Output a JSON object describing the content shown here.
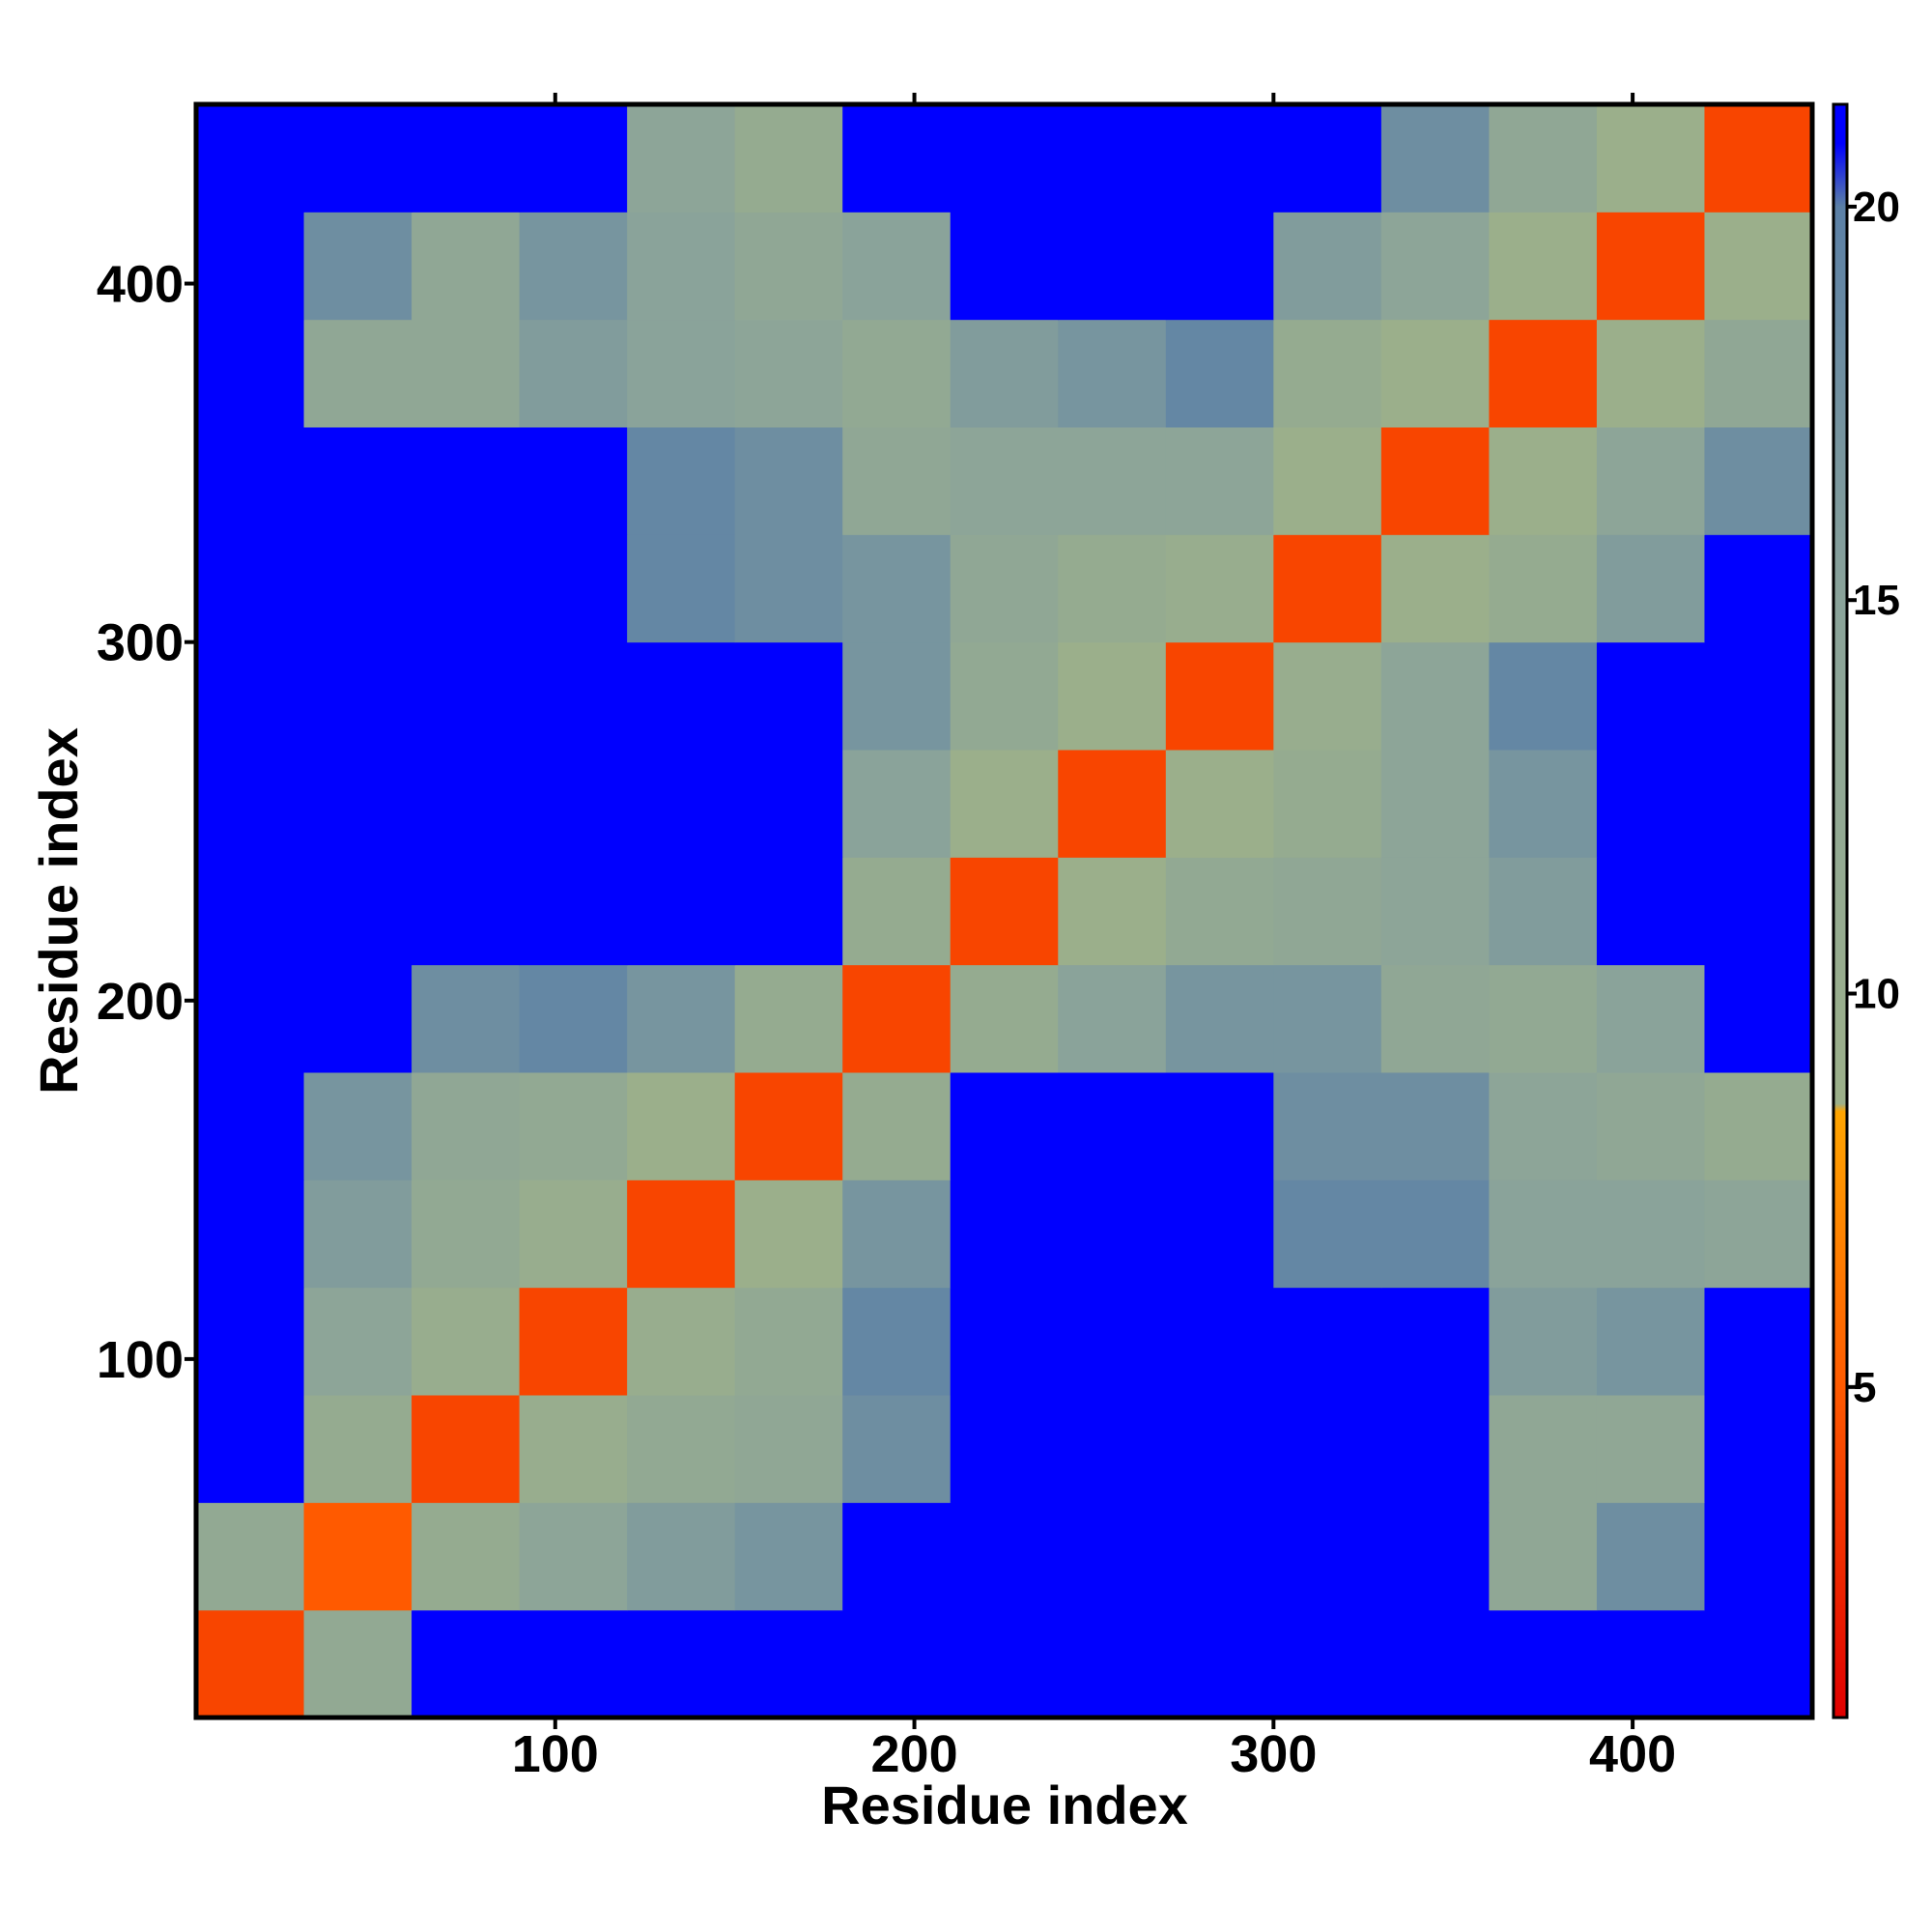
{
  "chart_data": {
    "type": "heatmap",
    "xlabel": "Residue index",
    "ylabel": "Residue index",
    "xlim": [
      0,
      450
    ],
    "ylim": [
      0,
      450
    ],
    "xticks": [
      100,
      200,
      300,
      400
    ],
    "yticks": [
      100,
      200,
      300,
      400
    ],
    "x_bins": [
      0,
      30,
      60,
      90,
      120,
      150,
      180,
      210,
      240,
      270,
      300,
      330,
      360,
      390,
      420,
      450
    ],
    "y_bins": [
      0,
      30,
      60,
      90,
      120,
      150,
      180,
      210,
      240,
      270,
      300,
      330,
      360,
      390,
      420,
      450
    ],
    "values": [
      [
        4,
        12,
        21,
        21,
        21,
        21,
        21,
        21,
        21,
        21,
        21,
        21,
        21,
        21,
        21
      ],
      [
        12,
        5,
        11,
        14,
        16,
        17,
        21,
        21,
        21,
        21,
        21,
        21,
        13,
        18,
        21
      ],
      [
        21,
        11,
        4,
        10,
        12,
        13,
        18,
        21,
        21,
        21,
        21,
        21,
        13,
        13,
        21
      ],
      [
        21,
        14,
        10,
        4,
        10,
        12,
        19,
        21,
        21,
        21,
        21,
        21,
        16,
        17,
        21
      ],
      [
        21,
        16,
        12,
        10,
        4,
        9,
        17,
        21,
        21,
        21,
        19,
        19,
        15,
        15,
        14
      ],
      [
        21,
        17,
        13,
        12,
        9,
        4,
        11,
        21,
        21,
        21,
        18,
        18,
        14,
        13,
        11
      ],
      [
        21,
        21,
        18,
        19,
        17,
        11,
        4,
        11,
        15,
        17,
        17,
        13,
        12,
        15,
        21
      ],
      [
        21,
        21,
        21,
        21,
        21,
        21,
        11,
        4,
        9,
        12,
        13,
        14,
        16,
        21,
        21
      ],
      [
        21,
        21,
        21,
        21,
        21,
        21,
        15,
        9,
        4,
        9,
        11,
        14,
        17,
        21,
        21
      ],
      [
        21,
        21,
        21,
        21,
        21,
        21,
        17,
        12,
        9,
        4,
        10,
        14,
        19,
        21,
        21
      ],
      [
        21,
        21,
        21,
        21,
        19,
        18,
        17,
        13,
        11,
        10,
        4,
        9,
        11,
        16,
        21
      ],
      [
        21,
        21,
        21,
        21,
        19,
        18,
        13,
        14,
        14,
        14,
        9,
        4,
        9,
        14,
        18
      ],
      [
        21,
        13,
        13,
        16,
        15,
        14,
        12,
        16,
        17,
        19,
        11,
        9,
        4,
        9,
        13
      ],
      [
        21,
        18,
        13,
        17,
        15,
        13,
        15,
        21,
        21,
        21,
        16,
        14,
        9,
        4,
        9
      ],
      [
        21,
        21,
        21,
        21,
        14,
        11,
        21,
        21,
        21,
        21,
        21,
        18,
        13,
        9,
        4
      ]
    ],
    "colorbar": {
      "lim": [
        0.8,
        21.3
      ],
      "ticks": [
        5,
        10,
        15,
        20
      ]
    },
    "colorscale": [
      {
        "value": 0.8,
        "color": "#e00000"
      },
      {
        "value": 5,
        "color": "#ff5a00"
      },
      {
        "value": 8.5,
        "color": "#ffa500"
      },
      {
        "value": 8.6,
        "color": "#9cb08a"
      },
      {
        "value": 15,
        "color": "#8aa39a"
      },
      {
        "value": 20,
        "color": "#5b80a6"
      },
      {
        "value": 20.8,
        "color": "#0000ff"
      },
      {
        "value": 21.3,
        "color": "#0000ff"
      }
    ]
  }
}
